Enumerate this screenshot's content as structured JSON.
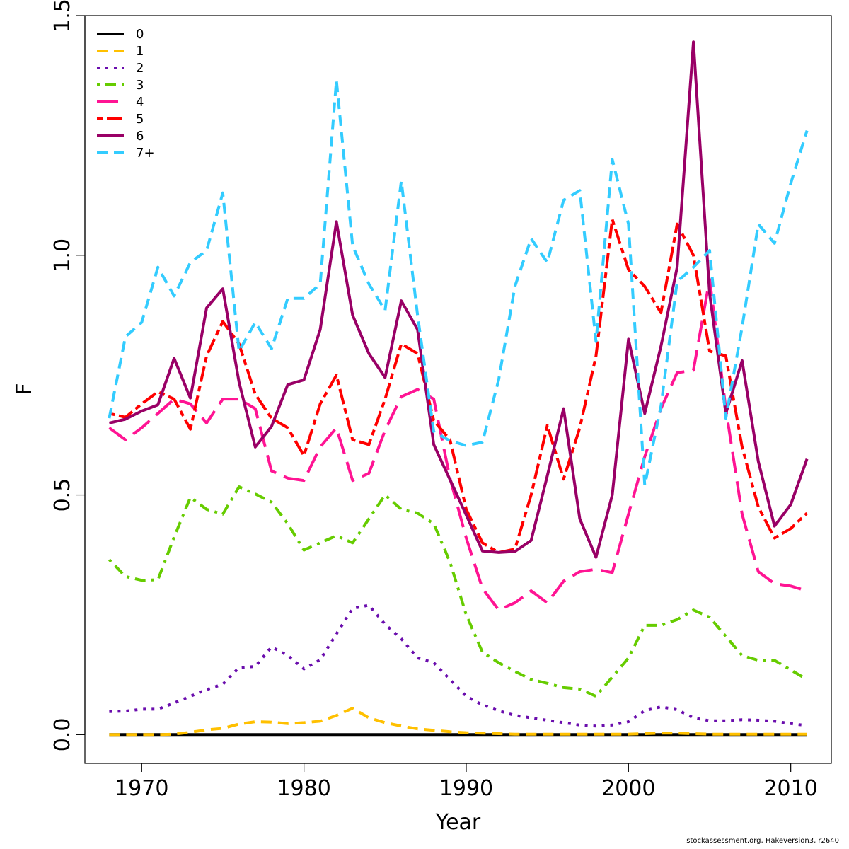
{
  "chart_data": {
    "type": "line",
    "xlabel": "Year",
    "ylabel": "F",
    "xlim": [
      1966.5,
      2012.5
    ],
    "ylim": [
      -0.06,
      1.5
    ],
    "x_ticks": [
      1970,
      1980,
      1990,
      2000,
      2010
    ],
    "y_ticks": [
      0.0,
      0.5,
      1.0,
      1.5
    ],
    "y_tick_labels": [
      "0.0",
      "0.5",
      "1.0",
      "1.5"
    ],
    "legend_position": "top-left",
    "grid": false,
    "x": [
      1968,
      1969,
      1970,
      1971,
      1972,
      1973,
      1974,
      1975,
      1976,
      1977,
      1978,
      1979,
      1980,
      1981,
      1982,
      1983,
      1984,
      1985,
      1986,
      1987,
      1988,
      1989,
      1990,
      1991,
      1992,
      1993,
      1994,
      1995,
      1996,
      1997,
      1998,
      1999,
      2000,
      2001,
      2002,
      2003,
      2004,
      2005,
      2006,
      2007,
      2008,
      2009,
      2010,
      2011
    ],
    "series": [
      {
        "name": "0",
        "color": "#000000",
        "dash": "solid",
        "values": [
          0,
          0,
          0,
          0,
          0,
          0,
          0,
          0,
          0,
          0,
          0,
          0,
          0,
          0,
          0,
          0,
          0,
          0,
          0,
          0,
          0,
          0,
          0,
          0,
          0,
          0,
          0,
          0,
          0,
          0,
          0,
          0,
          0,
          0,
          0,
          0,
          0,
          0,
          0,
          0,
          0,
          0,
          0,
          0
        ]
      },
      {
        "name": "1",
        "color": "#FFC000",
        "dash": "dashed",
        "values": [
          0,
          0,
          0,
          0,
          0.001,
          0.005,
          0.01,
          0.013,
          0.022,
          0.027,
          0.026,
          0.023,
          0.025,
          0.028,
          0.04,
          0.055,
          0.035,
          0.025,
          0.018,
          0.012,
          0.009,
          0.006,
          0.004,
          0.003,
          0.002,
          0.001,
          0.001,
          0.001,
          0.001,
          0.001,
          0.001,
          0.001,
          0.001,
          0.002,
          0.003,
          0.003,
          0.002,
          0.001,
          0.001,
          0.001,
          0.001,
          0.001,
          0.001,
          0.001
        ]
      },
      {
        "name": "2",
        "color": "#6A0DAD",
        "dash": "dotted",
        "values": [
          0.048,
          0.049,
          0.053,
          0.053,
          0.066,
          0.08,
          0.094,
          0.105,
          0.14,
          0.142,
          0.183,
          0.165,
          0.137,
          0.156,
          0.21,
          0.263,
          0.27,
          0.23,
          0.2,
          0.16,
          0.15,
          0.115,
          0.08,
          0.062,
          0.05,
          0.04,
          0.035,
          0.03,
          0.025,
          0.02,
          0.018,
          0.02,
          0.027,
          0.05,
          0.058,
          0.052,
          0.035,
          0.029,
          0.029,
          0.031,
          0.03,
          0.028,
          0.023,
          0.019
        ]
      },
      {
        "name": "3",
        "color": "#66CC00",
        "dash": "dotdash",
        "values": [
          0.365,
          0.33,
          0.322,
          0.323,
          0.412,
          0.495,
          0.47,
          0.46,
          0.517,
          0.502,
          0.485,
          0.44,
          0.385,
          0.4,
          0.415,
          0.4,
          0.45,
          0.5,
          0.47,
          0.462,
          0.44,
          0.36,
          0.25,
          0.172,
          0.15,
          0.132,
          0.115,
          0.107,
          0.098,
          0.095,
          0.08,
          0.12,
          0.16,
          0.228,
          0.228,
          0.24,
          0.26,
          0.245,
          0.205,
          0.165,
          0.155,
          0.155,
          0.135,
          0.115
        ]
      },
      {
        "name": "4",
        "color": "#FF1493",
        "dash": "longdash",
        "values": [
          0.64,
          0.615,
          0.64,
          0.67,
          0.7,
          0.69,
          0.65,
          0.7,
          0.7,
          0.68,
          0.55,
          0.535,
          0.53,
          0.6,
          0.64,
          0.53,
          0.545,
          0.635,
          0.705,
          0.72,
          0.7,
          0.535,
          0.41,
          0.305,
          0.26,
          0.275,
          0.3,
          0.275,
          0.32,
          0.34,
          0.345,
          0.338,
          0.46,
          0.58,
          0.68,
          0.755,
          0.76,
          0.95,
          0.68,
          0.46,
          0.34,
          0.315,
          0.31,
          0.3
        ]
      },
      {
        "name": "5",
        "color": "#FF0000",
        "dash": "twodash",
        "values": [
          0.67,
          0.662,
          0.69,
          0.715,
          0.7,
          0.637,
          0.79,
          0.862,
          0.815,
          0.71,
          0.66,
          0.64,
          0.582,
          0.69,
          0.75,
          0.615,
          0.605,
          0.7,
          0.815,
          0.795,
          0.655,
          0.615,
          0.47,
          0.4,
          0.38,
          0.387,
          0.5,
          0.645,
          0.533,
          0.64,
          0.79,
          1.075,
          0.97,
          0.935,
          0.88,
          1.065,
          1.0,
          0.8,
          0.79,
          0.6,
          0.475,
          0.41,
          0.43,
          0.462
        ]
      },
      {
        "name": "6",
        "color": "#990066",
        "dash": "solid",
        "values": [
          0.65,
          0.658,
          0.675,
          0.688,
          0.785,
          0.702,
          0.89,
          0.93,
          0.735,
          0.6,
          0.643,
          0.73,
          0.74,
          0.845,
          1.07,
          0.875,
          0.795,
          0.745,
          0.905,
          0.845,
          0.605,
          0.532,
          0.458,
          0.383,
          0.38,
          0.382,
          0.405,
          0.54,
          0.68,
          0.45,
          0.37,
          0.5,
          0.825,
          0.67,
          0.81,
          0.975,
          1.445,
          0.92,
          0.67,
          0.78,
          0.57,
          0.435,
          0.48,
          0.575
        ]
      },
      {
        "name": "7+",
        "color": "#33CCFF",
        "dash": "dashed",
        "values": [
          0.66,
          0.83,
          0.86,
          0.975,
          0.915,
          0.985,
          1.01,
          1.13,
          0.8,
          0.86,
          0.805,
          0.91,
          0.91,
          0.94,
          1.365,
          1.02,
          0.94,
          0.885,
          1.155,
          0.875,
          0.632,
          0.613,
          0.603,
          0.61,
          0.74,
          0.935,
          1.035,
          0.985,
          1.115,
          1.135,
          0.82,
          1.2,
          1.065,
          0.52,
          0.685,
          0.945,
          0.975,
          1.01,
          0.66,
          0.85,
          1.065,
          1.025,
          1.15,
          1.26
        ]
      }
    ]
  },
  "footer": {
    "credit": "stockassessment.org, Hakeversion3, r2640"
  }
}
